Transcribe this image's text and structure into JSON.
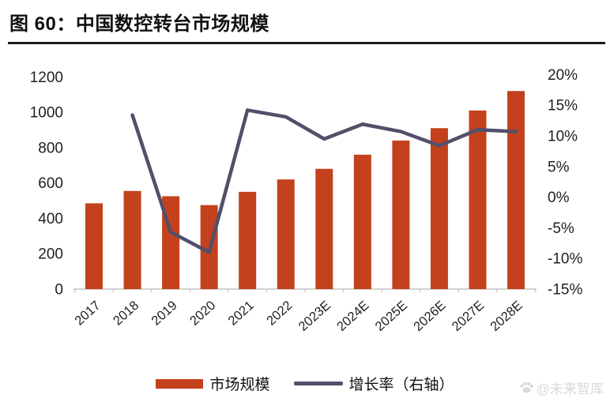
{
  "page": {
    "title": "图 60：中国数控转台市场规模",
    "watermark": "@未来智库"
  },
  "legend": {
    "bar_label": "市场规模",
    "line_label": "增长率（右轴）"
  },
  "colors": {
    "bar": "#c4411d",
    "line": "#524f6b",
    "axis": "#c3c3c3",
    "text": "#1f1f1f",
    "watermark": "#d8d8d8"
  },
  "chart_data": {
    "type": "bar",
    "title": "图 60：中国数控转台市场规模",
    "categories": [
      "2017",
      "2018",
      "2019",
      "2020",
      "2021",
      "2022",
      "2023E",
      "2024E",
      "2025E",
      "2026E",
      "2027E",
      "2028E"
    ],
    "series": [
      {
        "name": "市场规模",
        "type": "bar",
        "axis": "left",
        "values": [
          485,
          555,
          525,
          475,
          550,
          620,
          680,
          760,
          840,
          910,
          1010,
          1120
        ]
      },
      {
        "name": "增长率（右轴）",
        "type": "line",
        "axis": "right",
        "values": [
          null,
          13.4,
          -5.7,
          -9.0,
          14.2,
          13.1,
          9.5,
          11.9,
          10.7,
          8.4,
          11.0,
          10.7
        ]
      }
    ],
    "left_axis": {
      "min": 0,
      "max": 1200,
      "step": 200,
      "tick_labels": [
        "0",
        "200",
        "400",
        "600",
        "800",
        "1000",
        "1200"
      ]
    },
    "right_axis": {
      "min": -15,
      "max": 20,
      "step": 5,
      "tick_labels": [
        "-15%",
        "-10%",
        "-5%",
        "0%",
        "5%",
        "10%",
        "15%",
        "20%"
      ]
    },
    "grid": false,
    "legend_position": "bottom",
    "x_label_rotation": -42
  }
}
